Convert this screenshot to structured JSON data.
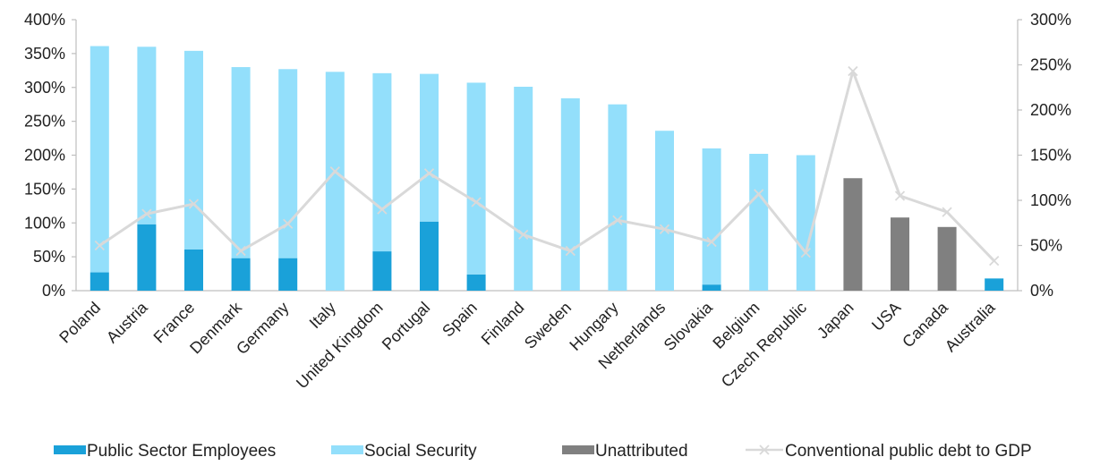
{
  "chart_data": {
    "type": "bar",
    "stacked": true,
    "categories": [
      "Poland",
      "Austria",
      "France",
      "Denmark",
      "Germany",
      "Italy",
      "United Kingdom",
      "Portugal",
      "Spain",
      "Finland",
      "Sweden",
      "Hungary",
      "Netherlands",
      "Slovakia",
      "Belgium",
      "Czech Republic",
      "Japan",
      "USA",
      "Canada",
      "Australia"
    ],
    "series": [
      {
        "name": "Public Sector Employees",
        "kind": "bar",
        "axis": "left",
        "color": "#1aa1d9",
        "values": [
          27,
          98,
          61,
          48,
          48,
          0,
          58,
          102,
          24,
          0,
          0,
          0,
          0,
          9,
          0,
          0,
          0,
          0,
          0,
          18
        ]
      },
      {
        "name": "Social Security",
        "kind": "bar",
        "axis": "left",
        "color": "#93dffb",
        "values": [
          334,
          262,
          293,
          282,
          279,
          323,
          263,
          218,
          283,
          301,
          284,
          275,
          236,
          201,
          202,
          200,
          0,
          0,
          0,
          0
        ]
      },
      {
        "name": "Unattributed",
        "kind": "bar",
        "axis": "left",
        "color": "#808080",
        "values": [
          0,
          0,
          0,
          0,
          0,
          0,
          0,
          0,
          0,
          0,
          0,
          0,
          0,
          0,
          0,
          0,
          166,
          108,
          94,
          0
        ]
      },
      {
        "name": "Conventional public debt to GDP",
        "kind": "line",
        "axis": "right",
        "color": "#d9d9d9",
        "values": [
          50,
          85,
          96,
          44,
          74,
          132,
          90,
          130,
          98,
          62,
          44,
          78,
          68,
          54,
          107,
          42,
          243,
          105,
          87,
          33
        ]
      }
    ],
    "y_left": {
      "min": 0,
      "max": 400,
      "step": 50,
      "ticks": [
        "0%",
        "50%",
        "100%",
        "150%",
        "200%",
        "250%",
        "300%",
        "350%",
        "400%"
      ]
    },
    "y_right": {
      "min": 0,
      "max": 300,
      "step": 50,
      "ticks": [
        "0%",
        "50%",
        "100%",
        "150%",
        "200%",
        "250%",
        "300%"
      ]
    },
    "grid": false,
    "legend_position": "bottom"
  }
}
